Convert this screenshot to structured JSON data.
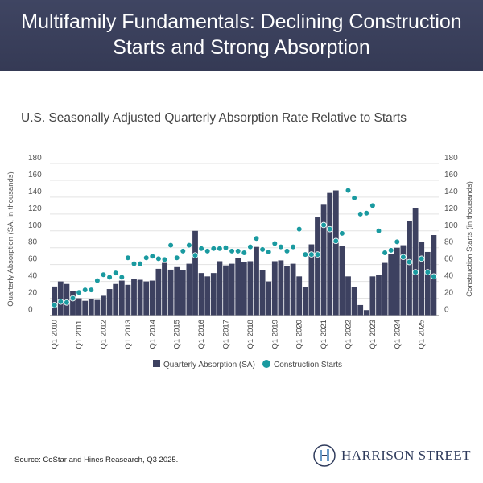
{
  "header": {
    "title_line1": "Multifamily Fundamentals: Declining Construction",
    "title_line2": "Starts and Strong Absorption"
  },
  "subtitle": "U.S. Seasonally Adjusted Quarterly Absorption Rate Relative to Starts",
  "source": "Source: CoStar and Hines Reasearch, Q3 2025.",
  "logo": {
    "text": "HARRISON STREET"
  },
  "colors": {
    "header": "#3a3f5c",
    "bars": "#3d4160",
    "dots": "#1a9aa0"
  },
  "chart_data": {
    "type": "bar+scatter",
    "title": "U.S. Seasonally Adjusted Quarterly Absorption Rate Relative to Starts",
    "ylabel_left": "Quarterly Absorption (SA, in thousands)",
    "ylabel_right": "Construction Starts (in thousands)",
    "ylim": [
      0,
      180
    ],
    "yticks": [
      0,
      20,
      40,
      60,
      80,
      100,
      120,
      140,
      160,
      180
    ],
    "grid": true,
    "legend_position": "bottom",
    "x_tick_labels": [
      "Q1 2010",
      "Q1 2011",
      "Q1 2012",
      "Q1 2013",
      "Q1 2014",
      "Q1 2015",
      "Q1 2016",
      "Q1 2017",
      "Q1 2018",
      "Q1 2019",
      "Q1 2020",
      "Q1 2021",
      "Q1 2022",
      "Q1 2023",
      "Q1 2024",
      "Q1 2025"
    ],
    "start_quarter": "Q1 2010",
    "series": [
      {
        "name": "Quarterly Absorption (SA)",
        "type": "bar",
        "values": [
          34,
          40,
          37,
          29,
          20,
          17,
          19,
          18,
          23,
          31,
          37,
          41,
          36,
          43,
          42,
          40,
          41,
          55,
          62,
          54,
          57,
          53,
          61,
          100,
          50,
          46,
          50,
          64,
          59,
          61,
          68,
          63,
          64,
          81,
          53,
          40,
          64,
          65,
          58,
          61,
          46,
          33,
          84,
          116,
          131,
          145,
          148,
          82,
          46,
          33,
          12,
          6,
          46,
          48,
          62,
          73,
          80,
          83,
          112,
          127,
          87,
          75,
          95
        ]
      },
      {
        "name": "Construction Starts",
        "type": "scatter",
        "values": [
          12,
          16,
          15,
          20,
          27,
          30,
          30,
          41,
          48,
          45,
          50,
          45,
          68,
          61,
          61,
          68,
          70,
          67,
          66,
          83,
          68,
          76,
          83,
          71,
          79,
          76,
          79,
          79,
          80,
          76,
          76,
          74,
          81,
          91,
          78,
          75,
          85,
          81,
          76,
          81,
          102,
          72,
          72,
          72,
          107,
          102,
          88,
          97,
          148,
          139,
          120,
          121,
          130,
          100,
          74,
          77,
          87,
          69,
          63,
          51,
          67,
          51,
          46
        ]
      }
    ]
  }
}
